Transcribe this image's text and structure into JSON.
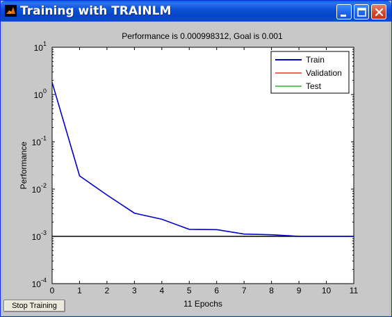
{
  "window": {
    "title": "Training with TRAINLM"
  },
  "controls": {
    "stop_button": "Stop Training"
  },
  "colors": {
    "train": "#0000cc",
    "validation": "#ff0000",
    "test": "#00aa00",
    "goal": "#000000"
  },
  "chart_data": {
    "type": "line",
    "title": "Performance is 0.000998312, Goal is 0.001",
    "xlabel": "11 Epochs",
    "ylabel": "Performance",
    "yscale": "log",
    "xlim": [
      0,
      11
    ],
    "ylim": [
      0.0001,
      10
    ],
    "xticks": [
      "0",
      "1",
      "2",
      "3",
      "4",
      "5",
      "6",
      "7",
      "8",
      "9",
      "10",
      "11"
    ],
    "yticks": [
      {
        "base": "10",
        "exp": "1"
      },
      {
        "base": "10",
        "exp": "0"
      },
      {
        "base": "10",
        "exp": "-1"
      },
      {
        "base": "10",
        "exp": "-2"
      },
      {
        "base": "10",
        "exp": "-3"
      },
      {
        "base": "10",
        "exp": "-4"
      }
    ],
    "legend_position": "top-right",
    "grid": false,
    "series": [
      {
        "name": "Train",
        "color": "#0000cc",
        "x": [
          0,
          1,
          2,
          3,
          4,
          5,
          6,
          7,
          8,
          9,
          10,
          11
        ],
        "y": [
          1.8,
          0.019,
          0.0075,
          0.0031,
          0.0023,
          0.00141,
          0.00139,
          0.00112,
          0.00108,
          0.001005,
          0.001,
          0.000998312
        ]
      },
      {
        "name": "Validation",
        "color": "#ff0000",
        "x": [],
        "y": []
      },
      {
        "name": "Test",
        "color": "#00aa00",
        "x": [],
        "y": []
      }
    ],
    "goal": 0.001
  }
}
